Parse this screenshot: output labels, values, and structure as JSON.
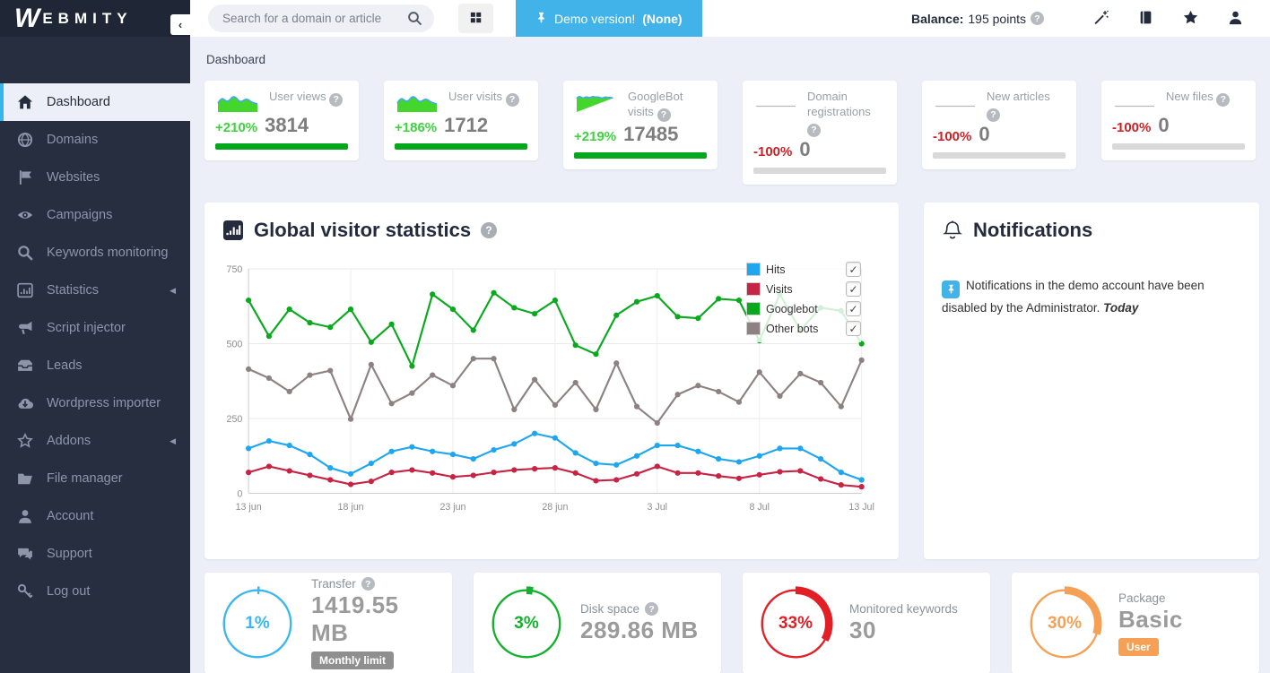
{
  "brand": {
    "name": "WEBMITY",
    "w": "W",
    "rest": "EBMITY"
  },
  "header": {
    "search_placeholder": "Search for a domain or article",
    "demo_button": {
      "text_regular": "Demo version! ",
      "text_bold": "(None)"
    },
    "balance_label": "Balance:",
    "balance_value": "195 points",
    "icons": [
      "wand-icon",
      "book-icon",
      "star-icon",
      "user-icon"
    ]
  },
  "sidebar": {
    "collapse": "‹",
    "items": [
      {
        "label": "Dashboard",
        "icon": "home-icon",
        "active": true
      },
      {
        "label": "Domains",
        "icon": "globe-icon"
      },
      {
        "label": "Websites",
        "icon": "flag-icon"
      },
      {
        "label": "Campaigns",
        "icon": "eye-icon"
      },
      {
        "label": "Keywords monitoring",
        "icon": "search-icon"
      },
      {
        "label": "Statistics",
        "icon": "bar-chart-icon",
        "has_submenu": true
      },
      {
        "label": "Script injector",
        "icon": "megaphone-icon"
      },
      {
        "label": "Leads",
        "icon": "inbox-icon"
      },
      {
        "label": "Wordpress importer",
        "icon": "cloud-download-icon"
      },
      {
        "label": "Addons",
        "icon": "star-outline-icon",
        "has_submenu": true
      },
      {
        "label": "File manager",
        "icon": "folder-icon"
      },
      {
        "label": "Account",
        "icon": "user-icon"
      },
      {
        "label": "Support",
        "icon": "chat-icon"
      },
      {
        "label": "Log out",
        "icon": "key-icon"
      }
    ]
  },
  "breadcrumb": "Dashboard",
  "stat_cards": [
    {
      "label": "User views",
      "percent": "+210%",
      "value": "3814",
      "trend": "up"
    },
    {
      "label": "User visits",
      "percent": "+186%",
      "value": "1712",
      "trend": "up"
    },
    {
      "label": "GoogleBot visits",
      "percent": "+219%",
      "value": "17485",
      "trend": "up"
    },
    {
      "label": "Domain registrations",
      "percent": "-100%",
      "value": "0",
      "trend": "down"
    },
    {
      "label": "New articles",
      "percent": "-100%",
      "value": "0",
      "trend": "down"
    },
    {
      "label": "New files",
      "percent": "-100%",
      "value": "0",
      "trend": "down"
    }
  ],
  "chart_panel": {
    "title": "Global visitor statistics"
  },
  "chart_data": {
    "type": "line",
    "title": "Global visitor statistics",
    "x_tick_labels": [
      "13 jun",
      "18 jun",
      "23 jun",
      "28 jun",
      "3 Jul",
      "8 Jul",
      "13 Jul"
    ],
    "y_ticks": [
      0,
      250,
      500,
      750
    ],
    "ylim": [
      0,
      750
    ],
    "grid": true,
    "legend_position": "top-right",
    "legend_checkbox": "✓",
    "series": [
      {
        "name": "Hits",
        "color": "#1ea6f0",
        "values": [
          150,
          175,
          160,
          130,
          85,
          65,
          100,
          140,
          155,
          140,
          130,
          115,
          145,
          165,
          200,
          185,
          135,
          100,
          95,
          125,
          160,
          160,
          140,
          115,
          105,
          125,
          150,
          150,
          115,
          70,
          45
        ]
      },
      {
        "name": "Visits",
        "color": "#c72344",
        "values": [
          70,
          90,
          75,
          60,
          45,
          30,
          40,
          70,
          78,
          68,
          55,
          60,
          70,
          78,
          82,
          85,
          68,
          42,
          45,
          65,
          90,
          68,
          68,
          58,
          50,
          62,
          72,
          75,
          48,
          28,
          22
        ]
      },
      {
        "name": "Googlebot",
        "color": "#09a91e",
        "values": [
          645,
          525,
          615,
          570,
          555,
          615,
          505,
          565,
          425,
          665,
          615,
          545,
          670,
          620,
          600,
          645,
          495,
          465,
          595,
          640,
          660,
          590,
          585,
          650,
          645,
          510,
          665,
          545,
          620,
          610,
          500
        ]
      },
      {
        "name": "Other bots",
        "color": "#8d8181",
        "values": [
          415,
          385,
          340,
          395,
          410,
          248,
          430,
          300,
          335,
          395,
          360,
          450,
          450,
          280,
          380,
          295,
          370,
          280,
          435,
          290,
          235,
          330,
          360,
          340,
          305,
          405,
          325,
          400,
          370,
          290,
          445
        ]
      }
    ]
  },
  "notifications_panel": {
    "title": "Notifications",
    "message": "Notifications in the demo account have been disabled by the Administrator.",
    "date": "Today"
  },
  "usage_cards": [
    {
      "label": "Transfer",
      "percent": "1%",
      "pct": 1,
      "value": "1419.55 MB",
      "badge": "Monthly limit",
      "color": "#3ab6f0"
    },
    {
      "label": "Disk space",
      "percent": "3%",
      "pct": 3,
      "value": "289.86 MB",
      "badge": "",
      "color": "#12b12e"
    },
    {
      "label": "Monitored keywords",
      "percent": "33%",
      "pct": 33,
      "value": "30",
      "badge": "",
      "color": "#e31e24"
    },
    {
      "label": "Package",
      "percent": "30%",
      "pct": 30,
      "value": "Basic",
      "badge": "User",
      "color": "#f5a055"
    }
  ],
  "colors": {
    "sidebar_bg": "#262e40",
    "logo_bg": "#1f2736",
    "active_accent": "#35b5ee",
    "content_bg": "#edeff8",
    "demo_blue": "#41b3e8",
    "positive_green": "#3fd13f",
    "negative_red": "#cc2127",
    "bar_green": "#05a81c",
    "bar_gray": "#d9d9d9",
    "spark_fill": "#44d62c",
    "spark_stroke": "#3fa9f5"
  }
}
